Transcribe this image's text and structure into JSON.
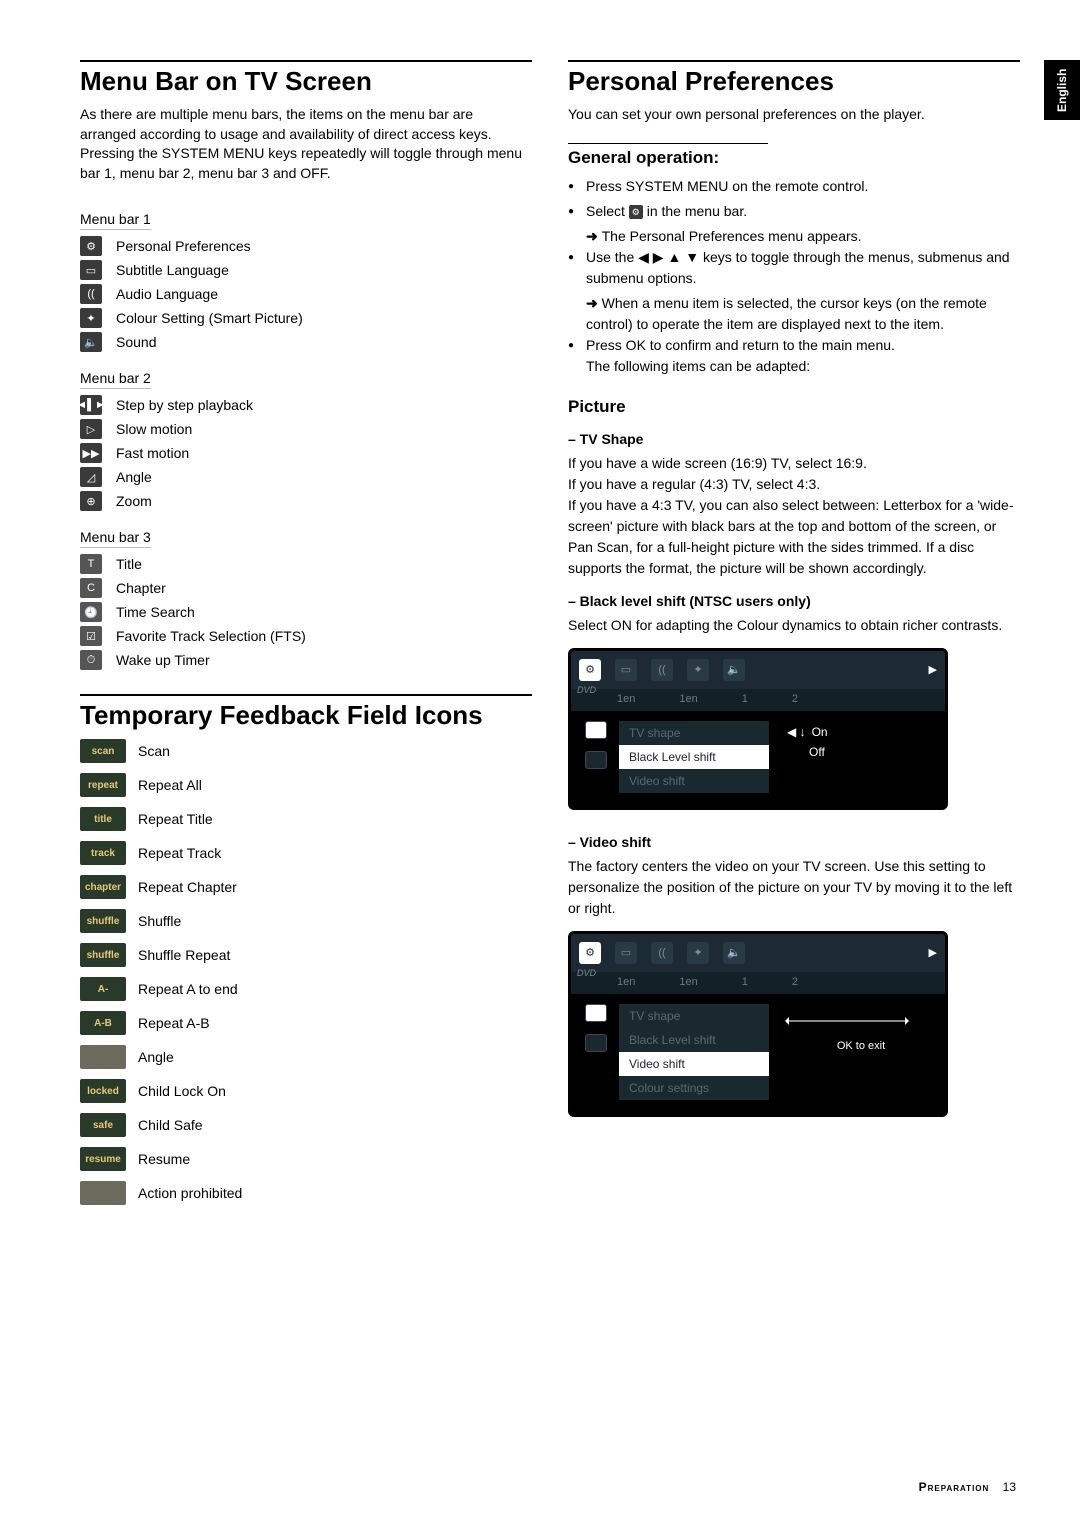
{
  "side_tab": "English",
  "left": {
    "menubar_title": "Menu Bar on TV Screen",
    "menubar_intro": "As there are multiple menu bars, the items on the menu bar are arranged according to usage and availability of direct access keys. Pressing the SYSTEM MENU keys repeatedly will toggle through menu bar 1, menu bar 2, menu bar 3 and OFF.",
    "bar1_label": "Menu bar 1",
    "bar1": [
      {
        "icon": "⚙",
        "text": "Personal Preferences"
      },
      {
        "icon": "▭",
        "text": "Subtitle Language"
      },
      {
        "icon": "((",
        "text": "Audio Language"
      },
      {
        "icon": "✦",
        "text": "Colour Setting (Smart Picture)"
      },
      {
        "icon": "🔈",
        "text": "Sound"
      }
    ],
    "bar2_label": "Menu bar 2",
    "bar2": [
      {
        "icon": "◄▌►",
        "text": "Step by step playback"
      },
      {
        "icon": "▷",
        "text": "Slow motion"
      },
      {
        "icon": "▶▶",
        "text": "Fast motion"
      },
      {
        "icon": "◿",
        "text": "Angle"
      },
      {
        "icon": "⊕",
        "text": "Zoom"
      }
    ],
    "bar3_label": "Menu bar 3",
    "bar3": [
      {
        "icon": "T",
        "text": "Title"
      },
      {
        "icon": "C",
        "text": "Chapter"
      },
      {
        "icon": "🕘",
        "text": "Time Search"
      },
      {
        "icon": "☑",
        "text": "Favorite Track Selection (FTS)"
      },
      {
        "icon": "⏱",
        "text": "Wake up Timer"
      }
    ],
    "tfi_title": "Temporary Feedback Field Icons",
    "tfi": [
      {
        "badge": "scan",
        "text": "Scan"
      },
      {
        "badge": "repeat",
        "text": "Repeat All"
      },
      {
        "badge": "title",
        "text": "Repeat Title"
      },
      {
        "badge": "track",
        "text": "Repeat Track"
      },
      {
        "badge": "chapter",
        "text": "Repeat Chapter"
      },
      {
        "badge": "shuffle",
        "text": "Shuffle"
      },
      {
        "badge": "shuffle",
        "text": "Shuffle Repeat"
      },
      {
        "badge": "A-",
        "text": "Repeat A to end"
      },
      {
        "badge": "A-B",
        "text": "Repeat A-B"
      },
      {
        "badge": "",
        "text": "Angle",
        "gray": true
      },
      {
        "badge": "locked",
        "text": "Child Lock On"
      },
      {
        "badge": "safe",
        "text": "Child Safe"
      },
      {
        "badge": "resume",
        "text": "Resume"
      },
      {
        "badge": "",
        "text": "Action prohibited",
        "gray": true
      }
    ]
  },
  "right": {
    "pp_title": "Personal Preferences",
    "pp_intro": "You can set your own personal preferences on the player.",
    "gen_op": "General operation:",
    "gen_bullets": [
      "Press SYSTEM MENU on the remote control.",
      "Select __ICON__ in the menu bar."
    ],
    "gen_arrow1": "The Personal Preferences menu appears.",
    "gen_bullet3": "Use the ◀ ▶ ▲ ▼ keys to toggle through the menus, submenus and submenu options.",
    "gen_arrow2": "When a menu item is selected, the cursor keys (on the remote control) to operate the item are displayed next to the item.",
    "gen_bullet4_a": "Press OK to confirm and return to the main menu.",
    "gen_bullet4_b": "The following items can be adapted:",
    "picture": "Picture",
    "tvshape_h": "– TV Shape",
    "tvshape_p": "If you have a wide screen (16:9) TV, select 16:9.\nIf you have a regular (4:3) TV, select 4:3.\nIf you have a 4:3 TV, you can also select between: Letterbox for a 'wide-screen' picture with black bars at the top and bottom of the screen, or Pan Scan, for a full-height picture with the sides trimmed. If a disc supports the format, the picture will be shown accordingly.",
    "bls_h": "– Black level shift (NTSC users only)",
    "bls_p": "Select ON for adapting the Colour dynamics to obtain richer contrasts.",
    "vs_h": "– Video shift",
    "vs_p": "The factory centers the video on your TV screen. Use this setting to personalize the position of the picture on your TV by moving it to the left or right.",
    "osd1": {
      "top_labels": [
        "1en",
        "1en",
        "1",
        "2"
      ],
      "menu": [
        "TV shape",
        "Black Level shift",
        "Video shift"
      ],
      "selected": 1,
      "opts": [
        "On",
        "Off"
      ]
    },
    "osd2": {
      "top_labels": [
        "1en",
        "1en",
        "1",
        "2"
      ],
      "menu": [
        "TV shape",
        "Black Level shift",
        "Video shift",
        "Colour settings"
      ],
      "selected": 2,
      "ok": "OK to exit"
    }
  },
  "footer": {
    "label": "Preparation",
    "page": "13"
  },
  "colors": {
    "text": "#000000",
    "osd_bg": "#1e2a33",
    "osd_dark": "#000000",
    "osd_muted": "#5a6a75",
    "badge_bg": "#2a3a2a",
    "badge_fg": "#e6c87a"
  }
}
